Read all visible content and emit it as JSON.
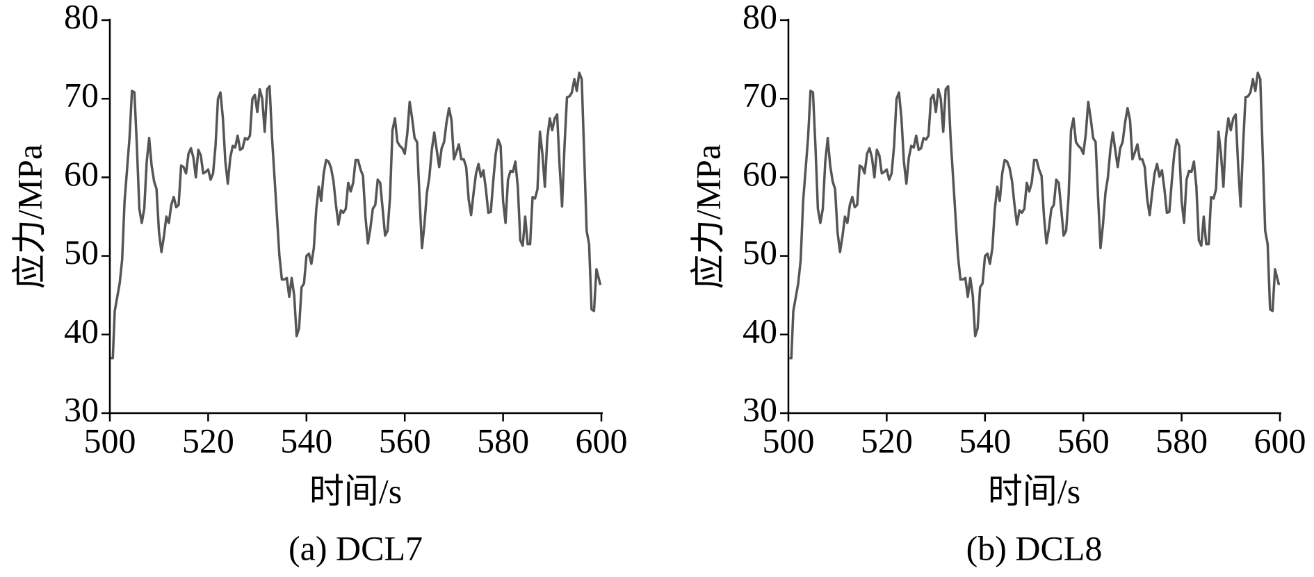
{
  "chart_data": [
    {
      "type": "line",
      "caption": "(a) DCL7",
      "xlabel": "时间/s",
      "ylabel": "应力/MPa",
      "color": "#555555",
      "xlim": [
        500,
        600
      ],
      "xticks": [
        500,
        520,
        540,
        560,
        580,
        600
      ],
      "ylim": [
        30,
        80
      ],
      "yticks": [
        30,
        40,
        50,
        60,
        70,
        80
      ],
      "x": [
        500.2,
        500.6,
        501,
        502,
        502.5,
        503,
        504,
        504.5,
        505,
        505.5,
        506,
        506.5,
        507,
        507.5,
        508,
        508.5,
        509,
        509.5,
        510,
        510.5,
        511,
        511.5,
        512,
        512.5,
        513,
        513.5,
        514,
        514.5,
        515,
        515.5,
        516,
        516.5,
        517,
        517.5,
        518,
        518.5,
        519,
        519.5,
        520,
        520.5,
        521,
        521.5,
        522,
        522.5,
        523,
        523.5,
        524,
        524.5,
        525,
        525.5,
        526,
        526.5,
        527,
        527.5,
        528,
        528.5,
        529,
        529.5,
        530,
        530.5,
        531,
        531.5,
        532,
        532.5,
        533,
        533.5,
        534,
        534.5,
        535,
        535.5,
        536,
        536.5,
        537,
        537.5,
        538,
        538.5,
        539,
        539.5,
        540,
        540.5,
        541,
        541.5,
        542,
        542.5,
        543,
        543.5,
        544,
        544.5,
        545,
        545.5,
        546,
        546.5,
        547,
        547.5,
        548,
        548.5,
        549,
        549.5,
        550,
        550.5,
        551,
        551.5,
        552,
        552.5,
        553,
        553.5,
        554,
        554.5,
        555,
        555.5,
        556,
        556.5,
        557,
        557.5,
        558,
        558.5,
        559,
        559.5,
        560,
        560.5,
        561,
        561.5,
        562,
        562.5,
        563,
        563.5,
        564,
        564.5,
        565,
        565.5,
        566,
        566.5,
        567,
        567.5,
        568,
        568.5,
        569,
        569.5,
        570,
        570.5,
        571,
        571.5,
        572,
        572.5,
        573,
        573.5,
        574,
        574.5,
        575,
        575.5,
        576,
        576.5,
        577,
        577.5,
        578,
        578.5,
        579,
        579.5,
        580,
        580.5,
        581,
        581.5,
        582,
        582.5,
        583,
        583.5,
        584,
        584.5,
        585,
        585.5,
        586,
        586.5,
        587,
        587.5,
        588,
        588.5,
        589,
        589.5,
        590,
        590.5,
        591,
        591.5,
        592,
        592.5,
        593,
        593.5,
        594,
        594.5,
        595,
        595.5,
        596,
        596.5,
        597,
        597.5,
        598,
        598.5,
        599,
        599.8
      ],
      "values": [
        37,
        37,
        43,
        46.5,
        49.5,
        57,
        65,
        71,
        70.8,
        64,
        56,
        54.2,
        56,
        62,
        65,
        61.5,
        59.5,
        58.5,
        53,
        50.5,
        52.5,
        55,
        54.2,
        56.5,
        57.5,
        56.2,
        56.5,
        61.5,
        61.3,
        60.5,
        63,
        63.7,
        62.5,
        60,
        63.5,
        62.8,
        60.5,
        60.7,
        61,
        59.7,
        60.5,
        64,
        70,
        70.8,
        67.5,
        62,
        59.2,
        62.5,
        64,
        63.8,
        65.3,
        63.5,
        63.7,
        65,
        64.8,
        65.3,
        70,
        70.5,
        68.3,
        71.2,
        70,
        65.8,
        71.2,
        71.6,
        65,
        60,
        55,
        50,
        47,
        47,
        47.2,
        44.8,
        47.2,
        45,
        39.8,
        40.8,
        46,
        46.5,
        50,
        50.3,
        49,
        51,
        56,
        58.8,
        57,
        60.5,
        62.2,
        62,
        61.2,
        59.5,
        56.5,
        54,
        55.8,
        55.5,
        56,
        59.3,
        58.2,
        59.3,
        62.2,
        62.2,
        61,
        60.2,
        55,
        51.6,
        53.5,
        56,
        56.5,
        59.7,
        59.3,
        56,
        52.6,
        53.2,
        57.5,
        66,
        67.5,
        64.5,
        64,
        63.7,
        63,
        65.5,
        69.6,
        67.5,
        65,
        64.5,
        57.5,
        51,
        54,
        58,
        60,
        63.5,
        65.7,
        63.5,
        61.3,
        63.7,
        64.5,
        67,
        68.8,
        67.3,
        62.3,
        63.2,
        64.2,
        62.3,
        62.3,
        61.3,
        57.2,
        55.2,
        58,
        60.5,
        61.7,
        60.1,
        60.9,
        58.5,
        55.5,
        55.6,
        59.5,
        63,
        64.8,
        64,
        57,
        54.2,
        59.7,
        60.8,
        60.7,
        62,
        58.8,
        52,
        51.3,
        55,
        51.5,
        51.5,
        57.5,
        57.3,
        58.5,
        65.8,
        63,
        58.8,
        65,
        67.5,
        66,
        67.5,
        68,
        61.5,
        56.3,
        64,
        70.2,
        70.3,
        70.8,
        72.5,
        71,
        73.3,
        72.5,
        63,
        53.2,
        51.5,
        43.2,
        43,
        48.3,
        46.3
      ]
    },
    {
      "type": "line",
      "caption": "(b) DCL8",
      "xlabel": "时间/s",
      "ylabel": "应力/MPa",
      "color": "#555555",
      "xlim": [
        500,
        600
      ],
      "xticks": [
        500,
        520,
        540,
        560,
        580,
        600
      ],
      "ylim": [
        30,
        80
      ],
      "yticks": [
        30,
        40,
        50,
        60,
        70,
        80
      ],
      "x": [
        500.2,
        500.6,
        501,
        502,
        502.5,
        503,
        504,
        504.5,
        505,
        505.5,
        506,
        506.5,
        507,
        507.5,
        508,
        508.5,
        509,
        509.5,
        510,
        510.5,
        511,
        511.5,
        512,
        512.5,
        513,
        513.5,
        514,
        514.5,
        515,
        515.5,
        516,
        516.5,
        517,
        517.5,
        518,
        518.5,
        519,
        519.5,
        520,
        520.5,
        521,
        521.5,
        522,
        522.5,
        523,
        523.5,
        524,
        524.5,
        525,
        525.5,
        526,
        526.5,
        527,
        527.5,
        528,
        528.5,
        529,
        529.5,
        530,
        530.5,
        531,
        531.5,
        532,
        532.5,
        533,
        533.5,
        534,
        534.5,
        535,
        535.5,
        536,
        536.5,
        537,
        537.5,
        538,
        538.5,
        539,
        539.5,
        540,
        540.5,
        541,
        541.5,
        542,
        542.5,
        543,
        543.5,
        544,
        544.5,
        545,
        545.5,
        546,
        546.5,
        547,
        547.5,
        548,
        548.5,
        549,
        549.5,
        550,
        550.5,
        551,
        551.5,
        552,
        552.5,
        553,
        553.5,
        554,
        554.5,
        555,
        555.5,
        556,
        556.5,
        557,
        557.5,
        558,
        558.5,
        559,
        559.5,
        560,
        560.5,
        561,
        561.5,
        562,
        562.5,
        563,
        563.5,
        564,
        564.5,
        565,
        565.5,
        566,
        566.5,
        567,
        567.5,
        568,
        568.5,
        569,
        569.5,
        570,
        570.5,
        571,
        571.5,
        572,
        572.5,
        573,
        573.5,
        574,
        574.5,
        575,
        575.5,
        576,
        576.5,
        577,
        577.5,
        578,
        578.5,
        579,
        579.5,
        580,
        580.5,
        581,
        581.5,
        582,
        582.5,
        583,
        583.5,
        584,
        584.5,
        585,
        585.5,
        586,
        586.5,
        587,
        587.5,
        588,
        588.5,
        589,
        589.5,
        590,
        590.5,
        591,
        591.5,
        592,
        592.5,
        593,
        593.5,
        594,
        594.5,
        595,
        595.5,
        596,
        596.5,
        597,
        597.5,
        598,
        598.5,
        599,
        599.8
      ],
      "values": [
        37,
        37,
        43,
        46.5,
        49.5,
        57,
        65,
        71,
        70.8,
        64,
        56,
        54.2,
        56,
        62,
        65,
        61.5,
        59.5,
        58.5,
        53,
        50.5,
        52.5,
        55,
        54.2,
        56.5,
        57.5,
        56.2,
        56.5,
        61.5,
        61.3,
        60.5,
        63,
        63.7,
        62.5,
        60,
        63.5,
        62.8,
        60.5,
        60.7,
        61,
        59.7,
        60.5,
        64,
        70,
        70.8,
        67.5,
        62,
        59.2,
        62.5,
        64,
        63.8,
        65.3,
        63.5,
        63.7,
        65,
        64.8,
        65.3,
        70,
        70.5,
        68.3,
        71.2,
        70,
        65.8,
        71.2,
        71.6,
        65,
        60,
        55,
        50,
        47,
        47,
        47.2,
        44.8,
        47.2,
        45,
        39.8,
        40.8,
        46,
        46.5,
        50,
        50.3,
        49,
        51,
        56,
        58.8,
        57,
        60.5,
        62.2,
        62,
        61.2,
        59.5,
        56.5,
        54,
        55.8,
        55.5,
        56,
        59.3,
        58.2,
        59.3,
        62.2,
        62.2,
        61,
        60.2,
        55,
        51.6,
        53.5,
        56,
        56.5,
        59.7,
        59.3,
        56,
        52.6,
        53.2,
        57.5,
        66,
        67.5,
        64.5,
        64,
        63.7,
        63,
        65.5,
        69.6,
        67.5,
        65,
        64.5,
        57.5,
        51,
        54,
        58,
        60,
        63.5,
        65.7,
        63.5,
        61.3,
        63.7,
        64.5,
        67,
        68.8,
        67.3,
        62.3,
        63.2,
        64.2,
        62.3,
        62.3,
        61.3,
        57.2,
        55.2,
        58,
        60.5,
        61.7,
        60.1,
        60.9,
        58.5,
        55.5,
        55.6,
        59.5,
        63,
        64.8,
        64,
        57,
        54.2,
        59.7,
        60.8,
        60.7,
        62,
        58.8,
        52,
        51.3,
        55,
        51.5,
        51.5,
        57.5,
        57.3,
        58.5,
        65.8,
        63,
        58.8,
        65,
        67.5,
        66,
        67.5,
        68,
        61.5,
        56.3,
        64,
        70.2,
        70.3,
        70.8,
        72.5,
        71,
        73.3,
        72.5,
        63,
        53.2,
        51.5,
        43.2,
        43,
        48.3,
        46.3
      ]
    }
  ]
}
